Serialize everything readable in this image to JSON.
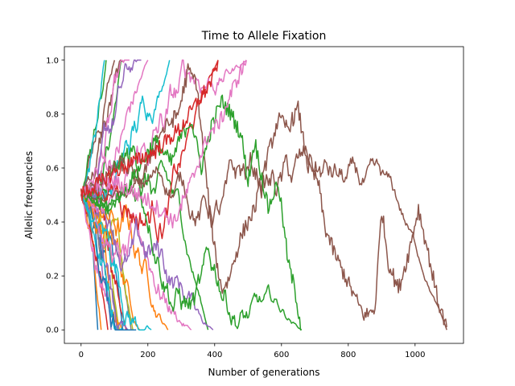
{
  "chart_data": {
    "type": "line",
    "title": "Time to Allele Fixation",
    "xlabel": "Number of generations",
    "ylabel": "Allelic frequencies",
    "xlim": [
      -50,
      1145
    ],
    "ylim": [
      -0.05,
      1.05
    ],
    "xticks": [
      0,
      200,
      400,
      600,
      800,
      1000
    ],
    "yticks": [
      0.0,
      0.2,
      0.4,
      0.6,
      0.8,
      1.0
    ],
    "xtick_labels": [
      "0",
      "200",
      "400",
      "600",
      "800",
      "1000"
    ],
    "ytick_labels": [
      "0.0",
      "0.2",
      "0.4",
      "0.6",
      "0.8",
      "1.0"
    ],
    "grid": false,
    "legend": "none",
    "start_frequency": 0.5,
    "series": [
      {
        "color": "#1f77b4",
        "end_generation": 50,
        "fixed_value": 0
      },
      {
        "color": "#ff7f0e",
        "end_generation": 60,
        "fixed_value": 0
      },
      {
        "color": "#2ca02c",
        "end_generation": 75,
        "fixed_value": 1
      },
      {
        "color": "#d62728",
        "end_generation": 80,
        "fixed_value": 0
      },
      {
        "color": "#9467bd",
        "end_generation": 90,
        "fixed_value": 0
      },
      {
        "color": "#8c564b",
        "end_generation": 100,
        "fixed_value": 1
      },
      {
        "color": "#e377c2",
        "end_generation": 105,
        "fixed_value": 0
      },
      {
        "color": "#7f7f7f",
        "end_generation": 110,
        "fixed_value": 0
      },
      {
        "color": "#bcbd22",
        "end_generation": 115,
        "fixed_value": 0
      },
      {
        "color": "#17becf",
        "end_generation": 70,
        "fixed_value": 1
      },
      {
        "color": "#1f77b4",
        "end_generation": 125,
        "fixed_value": 0
      },
      {
        "color": "#ff7f0e",
        "end_generation": 130,
        "fixed_value": 0
      },
      {
        "color": "#2ca02c",
        "end_generation": 120,
        "fixed_value": 1
      },
      {
        "color": "#d62728",
        "end_generation": 135,
        "fixed_value": 0
      },
      {
        "color": "#9467bd",
        "end_generation": 140,
        "fixed_value": 0
      },
      {
        "color": "#8c564b",
        "end_generation": 130,
        "fixed_value": 1
      },
      {
        "color": "#e377c2",
        "end_generation": 145,
        "fixed_value": 1
      },
      {
        "color": "#7f7f7f",
        "end_generation": 150,
        "fixed_value": 0
      },
      {
        "color": "#bcbd22",
        "end_generation": 155,
        "fixed_value": 0
      },
      {
        "color": "#17becf",
        "end_generation": 160,
        "fixed_value": 0
      },
      {
        "color": "#1f77b4",
        "end_generation": 165,
        "fixed_value": 0
      },
      {
        "color": "#ff7f0e",
        "end_generation": 175,
        "fixed_value": 0
      },
      {
        "color": "#9467bd",
        "end_generation": 180,
        "fixed_value": 1
      },
      {
        "color": "#e377c2",
        "end_generation": 200,
        "fixed_value": 1
      },
      {
        "color": "#17becf",
        "end_generation": 210,
        "fixed_value": 0
      },
      {
        "color": "#ff7f0e",
        "end_generation": 260,
        "fixed_value": 0
      },
      {
        "color": "#17becf",
        "end_generation": 265,
        "fixed_value": 1
      },
      {
        "color": "#e377c2",
        "end_generation": 330,
        "fixed_value": 0
      },
      {
        "color": "#2ca02c",
        "end_generation": 380,
        "fixed_value": 0
      },
      {
        "color": "#d62728",
        "end_generation": 410,
        "fixed_value": 1
      },
      {
        "color": "#9467bd",
        "end_generation": 395,
        "fixed_value": 0
      },
      {
        "color": "#e377c2",
        "end_generation": 495,
        "fixed_value": 1
      },
      {
        "color": "#2ca02c",
        "end_generation": 660,
        "fixed_value": 0
      },
      {
        "color": "#8c564b",
        "end_generation": 1095,
        "fixed_value": 0
      }
    ],
    "highlight_paths": [
      {
        "color": "#8c564b",
        "points": [
          [
            0,
            0.5
          ],
          [
            60,
            0.55
          ],
          [
            120,
            0.62
          ],
          [
            180,
            0.55
          ],
          [
            230,
            0.72
          ],
          [
            290,
            0.8
          ],
          [
            320,
            0.96
          ],
          [
            345,
            0.92
          ],
          [
            380,
            0.5
          ],
          [
            400,
            0.3
          ],
          [
            420,
            0.15
          ],
          [
            440,
            0.18
          ],
          [
            480,
            0.35
          ],
          [
            520,
            0.45
          ],
          [
            560,
            0.65
          ],
          [
            590,
            0.78
          ],
          [
            620,
            0.75
          ],
          [
            650,
            0.82
          ],
          [
            680,
            0.6
          ],
          [
            710,
            0.55
          ],
          [
            730,
            0.38
          ],
          [
            760,
            0.28
          ],
          [
            790,
            0.2
          ],
          [
            820,
            0.12
          ],
          [
            850,
            0.05
          ],
          [
            880,
            0.08
          ],
          [
            900,
            0.45
          ],
          [
            920,
            0.25
          ],
          [
            950,
            0.15
          ],
          [
            980,
            0.28
          ],
          [
            1010,
            0.45
          ],
          [
            1040,
            0.28
          ],
          [
            1070,
            0.1
          ],
          [
            1095,
            0.01
          ]
        ]
      },
      {
        "color": "#2ca02c",
        "points": [
          [
            0,
            0.5
          ],
          [
            80,
            0.45
          ],
          [
            150,
            0.55
          ],
          [
            220,
            0.7
          ],
          [
            270,
            0.62
          ],
          [
            300,
            0.72
          ],
          [
            330,
            0.78
          ],
          [
            360,
            0.6
          ],
          [
            390,
            0.75
          ],
          [
            420,
            0.85
          ],
          [
            450,
            0.8
          ],
          [
            480,
            0.72
          ],
          [
            500,
            0.55
          ],
          [
            520,
            0.7
          ],
          [
            560,
            0.45
          ],
          [
            590,
            0.55
          ],
          [
            620,
            0.25
          ],
          [
            640,
            0.15
          ],
          [
            660,
            0.0
          ]
        ]
      },
      {
        "color": "#e377c2",
        "points": [
          [
            0,
            0.5
          ],
          [
            100,
            0.55
          ],
          [
            200,
            0.48
          ],
          [
            280,
            0.4
          ],
          [
            330,
            0.55
          ],
          [
            380,
            0.72
          ],
          [
            420,
            0.78
          ],
          [
            450,
            0.88
          ],
          [
            475,
            0.95
          ],
          [
            495,
            1.0
          ]
        ]
      },
      {
        "color": "#d62728",
        "points": [
          [
            0,
            0.5
          ],
          [
            120,
            0.6
          ],
          [
            220,
            0.66
          ],
          [
            300,
            0.75
          ],
          [
            350,
            0.85
          ],
          [
            380,
            0.9
          ],
          [
            400,
            0.95
          ],
          [
            410,
            1.0
          ]
        ]
      }
    ]
  }
}
